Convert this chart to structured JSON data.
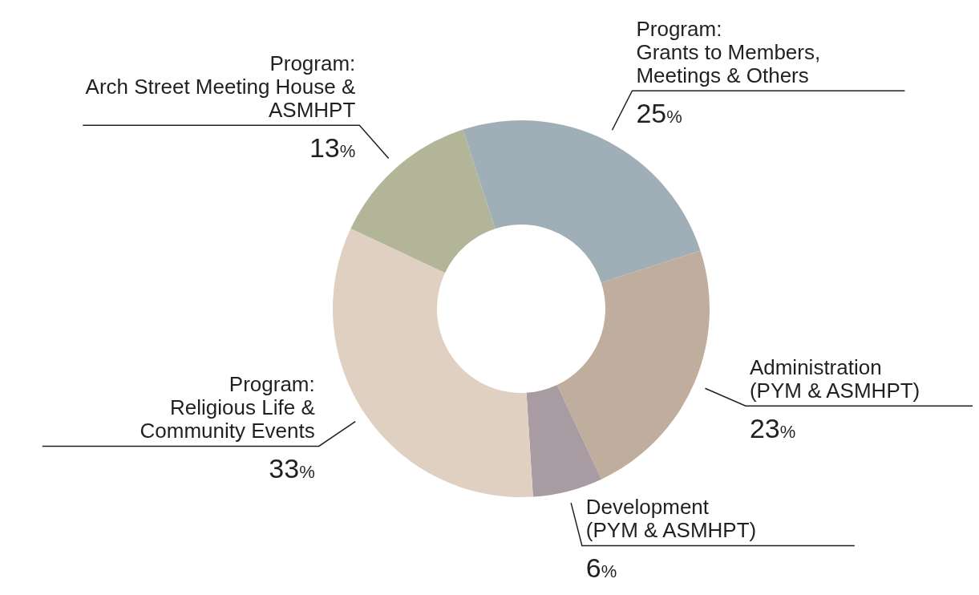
{
  "chart_data": {
    "type": "donut",
    "categories": [
      "Program:\nGrants to Members,\nMeetings & Others",
      "Administration\n(PYM & ASMHPT)",
      "Development\n(PYM & ASMHPT)",
      "Program:\nReligious Life &\nCommunity Events",
      "Program:\nArch Street Meeting House &\nASMHPT"
    ],
    "values": [
      25,
      23,
      6,
      33,
      13
    ],
    "value_labels": [
      "25%",
      "23%",
      "6%",
      "33%",
      "13%"
    ],
    "colors": [
      "#a0aeb8",
      "#bfae9e",
      "#a89ca2",
      "#e0d0c2",
      "#b2b598"
    ]
  }
}
